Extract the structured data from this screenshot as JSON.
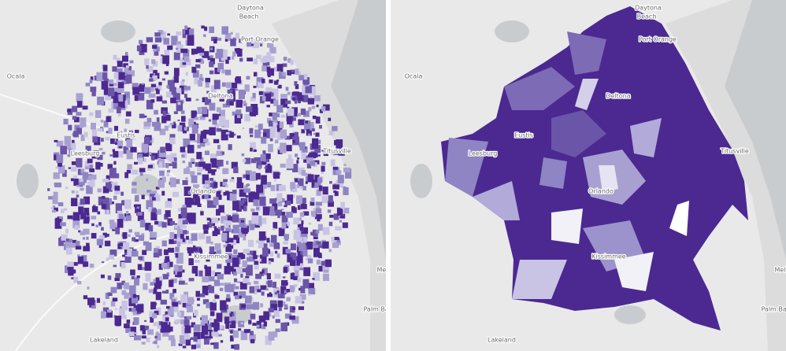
{
  "maps": [
    {
      "labels": [
        "Daytona",
        "Beach",
        "Port Orange",
        "Ocala",
        "Leesburg",
        "Eustis",
        "Deltona",
        "Titusville",
        "Orlando",
        "Kissimmee",
        "Melb",
        "Palm Bay",
        "Lakeland"
      ]
    },
    {
      "labels": [
        "Daytona",
        "Beach",
        "Port Orange",
        "Ocala",
        "Leesburg",
        "Eustis",
        "Deltona",
        "Titusville",
        "Orlando",
        "Kissimmee",
        "Melb",
        "Palm Bay",
        "Lakeland"
      ]
    }
  ]
}
